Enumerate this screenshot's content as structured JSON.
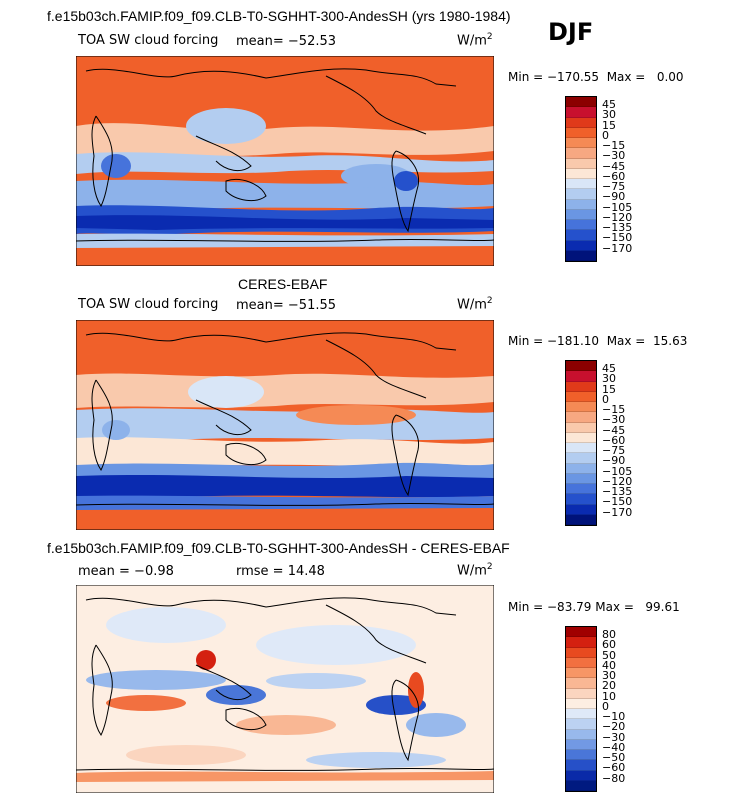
{
  "season": "DJF",
  "units": "W/m",
  "units_exp": "2",
  "panels": [
    {
      "title": "f.e15b03ch.FAMIP.f09_f09.CLB-T0-SGHHT-300-AndesSH (yrs 1980-1984)",
      "variable": "TOA SW cloud forcing",
      "mean_label": "mean=",
      "mean": "−52.53",
      "min_label": "Min =",
      "min": "−170.55",
      "max_label": "Max =",
      "max": "0.00",
      "colorbar": [
        "45",
        "30",
        "15",
        "0",
        "−15",
        "−30",
        "−45",
        "−60",
        "−75",
        "−90",
        "−105",
        "−120",
        "−135",
        "−150",
        "−170"
      ],
      "colors": [
        "#8b0000",
        "#c8102e",
        "#e03a1a",
        "#f0602a",
        "#f58a55",
        "#f7a882",
        "#f9c9ac",
        "#fce7d6",
        "#d9e6f7",
        "#b3cdf0",
        "#8db2ea",
        "#6a96e3",
        "#4673db",
        "#2551cc",
        "#0a2bb0",
        "#00137a"
      ]
    },
    {
      "title": "CERES-EBAF",
      "variable": "TOA SW cloud forcing",
      "mean_label": "mean=",
      "mean": "−51.55",
      "min_label": "Min =",
      "min": "−181.10",
      "max_label": "Max =",
      "max": "15.63",
      "colorbar": [
        "45",
        "30",
        "15",
        "0",
        "−15",
        "−30",
        "−45",
        "−60",
        "−75",
        "−90",
        "−105",
        "−120",
        "−135",
        "−150",
        "−170"
      ],
      "colors": [
        "#8b0000",
        "#c8102e",
        "#e03a1a",
        "#f0602a",
        "#f58a55",
        "#f7a882",
        "#f9c9ac",
        "#fce7d6",
        "#d9e6f7",
        "#b3cdf0",
        "#8db2ea",
        "#6a96e3",
        "#4673db",
        "#2551cc",
        "#0a2bb0",
        "#00137a"
      ]
    },
    {
      "title": "f.e15b03ch.FAMIP.f09_f09.CLB-T0-SGHHT-300-AndesSH - CERES-EBAF",
      "mean_label": "mean =",
      "mean": "−0.98",
      "rmse_label": "rmse =",
      "rmse": "14.48",
      "min_label": "Min =",
      "min": "−83.79",
      "max_label": "Max =",
      "max": "99.61",
      "colorbar": [
        "80",
        "60",
        "50",
        "40",
        "30",
        "20",
        "10",
        "0",
        "−10",
        "−20",
        "−30",
        "−40",
        "−50",
        "−60",
        "−80"
      ],
      "colors": [
        "#a00000",
        "#d42010",
        "#e84a20",
        "#f27040",
        "#f79666",
        "#f9b794",
        "#fbd5bf",
        "#fdeee2",
        "#dfe9f8",
        "#bcd2f2",
        "#98b9ec",
        "#7299e4",
        "#4a76d8",
        "#2650c8",
        "#0a2aa8",
        "#001a80"
      ]
    }
  ]
}
